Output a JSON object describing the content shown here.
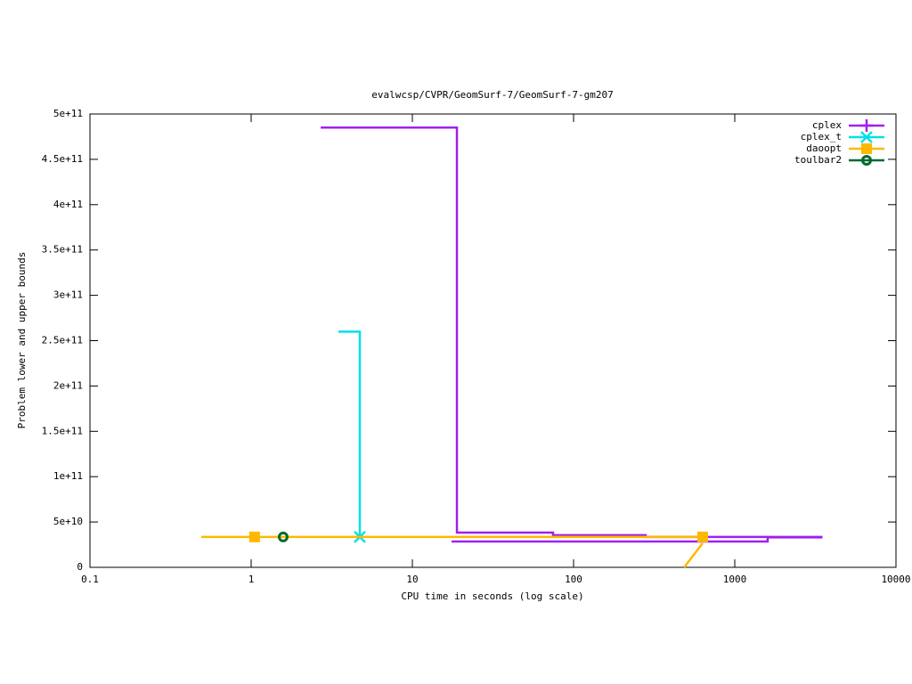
{
  "chart_data": {
    "type": "line",
    "title": "evalwcsp/CVPR/GeomSurf-7/GeomSurf-7-gm207",
    "x_label": "CPU time in seconds (log scale)",
    "y_label": "Problem lower and upper bounds",
    "x_log": true,
    "xlim": [
      0.1,
      10000
    ],
    "xticks": [
      0.1,
      1,
      10,
      100,
      1000,
      10000
    ],
    "ylim": [
      0,
      500000000000
    ],
    "yticks": [
      0,
      {
        "value": 50000000000,
        "label": "5e+10"
      },
      {
        "value": 100000000000,
        "label": "1e+11"
      },
      {
        "value": 150000000000,
        "label": "1.5e+11"
      },
      {
        "value": 200000000000,
        "label": "2e+11"
      },
      {
        "value": 250000000000,
        "label": "2.5e+11"
      },
      {
        "value": 300000000000,
        "label": "3e+11"
      },
      {
        "value": 350000000000,
        "label": "3.5e+11"
      },
      {
        "value": 400000000000,
        "label": "4e+11"
      },
      {
        "value": 450000000000,
        "label": "4.5e+11"
      },
      {
        "value": 500000000000,
        "label": "5e+11"
      }
    ],
    "legend": "upper right",
    "series": [
      {
        "name": "cplex",
        "color": "#a020f0",
        "marker": "plus",
        "x": [
          2.7,
          18.9,
          18.9,
          74.6,
          74.6,
          280,
          280,
          3500,
          17.5,
          17.5,
          1600,
          1600,
          3500
        ],
        "values": [
          485000000000,
          485000000000,
          38300000000,
          38300000000,
          35500000000,
          35500000000,
          33500000000,
          33500000000,
          null,
          28500000000,
          28500000000,
          33000000000,
          33000000000
        ],
        "points": {
          "x": [],
          "values": []
        }
      },
      {
        "name": "cplex_t",
        "color": "#00e0e8",
        "marker": "x",
        "x": [
          3.48,
          4.72,
          4.72
        ],
        "values": [
          260000000000,
          260000000000,
          33500000000
        ],
        "points": {
          "x": [
            4.72
          ],
          "values": [
            33500000000
          ]
        }
      },
      {
        "name": "daoopt",
        "color": "#ffb800",
        "marker": "square",
        "x": [
          0.49,
          632,
          0.1,
          485,
          485,
          632,
          632
        ],
        "values": [
          33500000000,
          33500000000,
          null,
          0,
          0,
          26500000000,
          26500000000
        ],
        "points": {
          "x": [
            1.05,
            632
          ],
          "values": [
            33500000000,
            33500000000
          ]
        }
      },
      {
        "name": "toulbar2",
        "color": "#006a30",
        "marker": "circle",
        "x": [],
        "values": [],
        "points": {
          "x": [
            1.58
          ],
          "values": [
            33500000000
          ]
        }
      }
    ]
  }
}
